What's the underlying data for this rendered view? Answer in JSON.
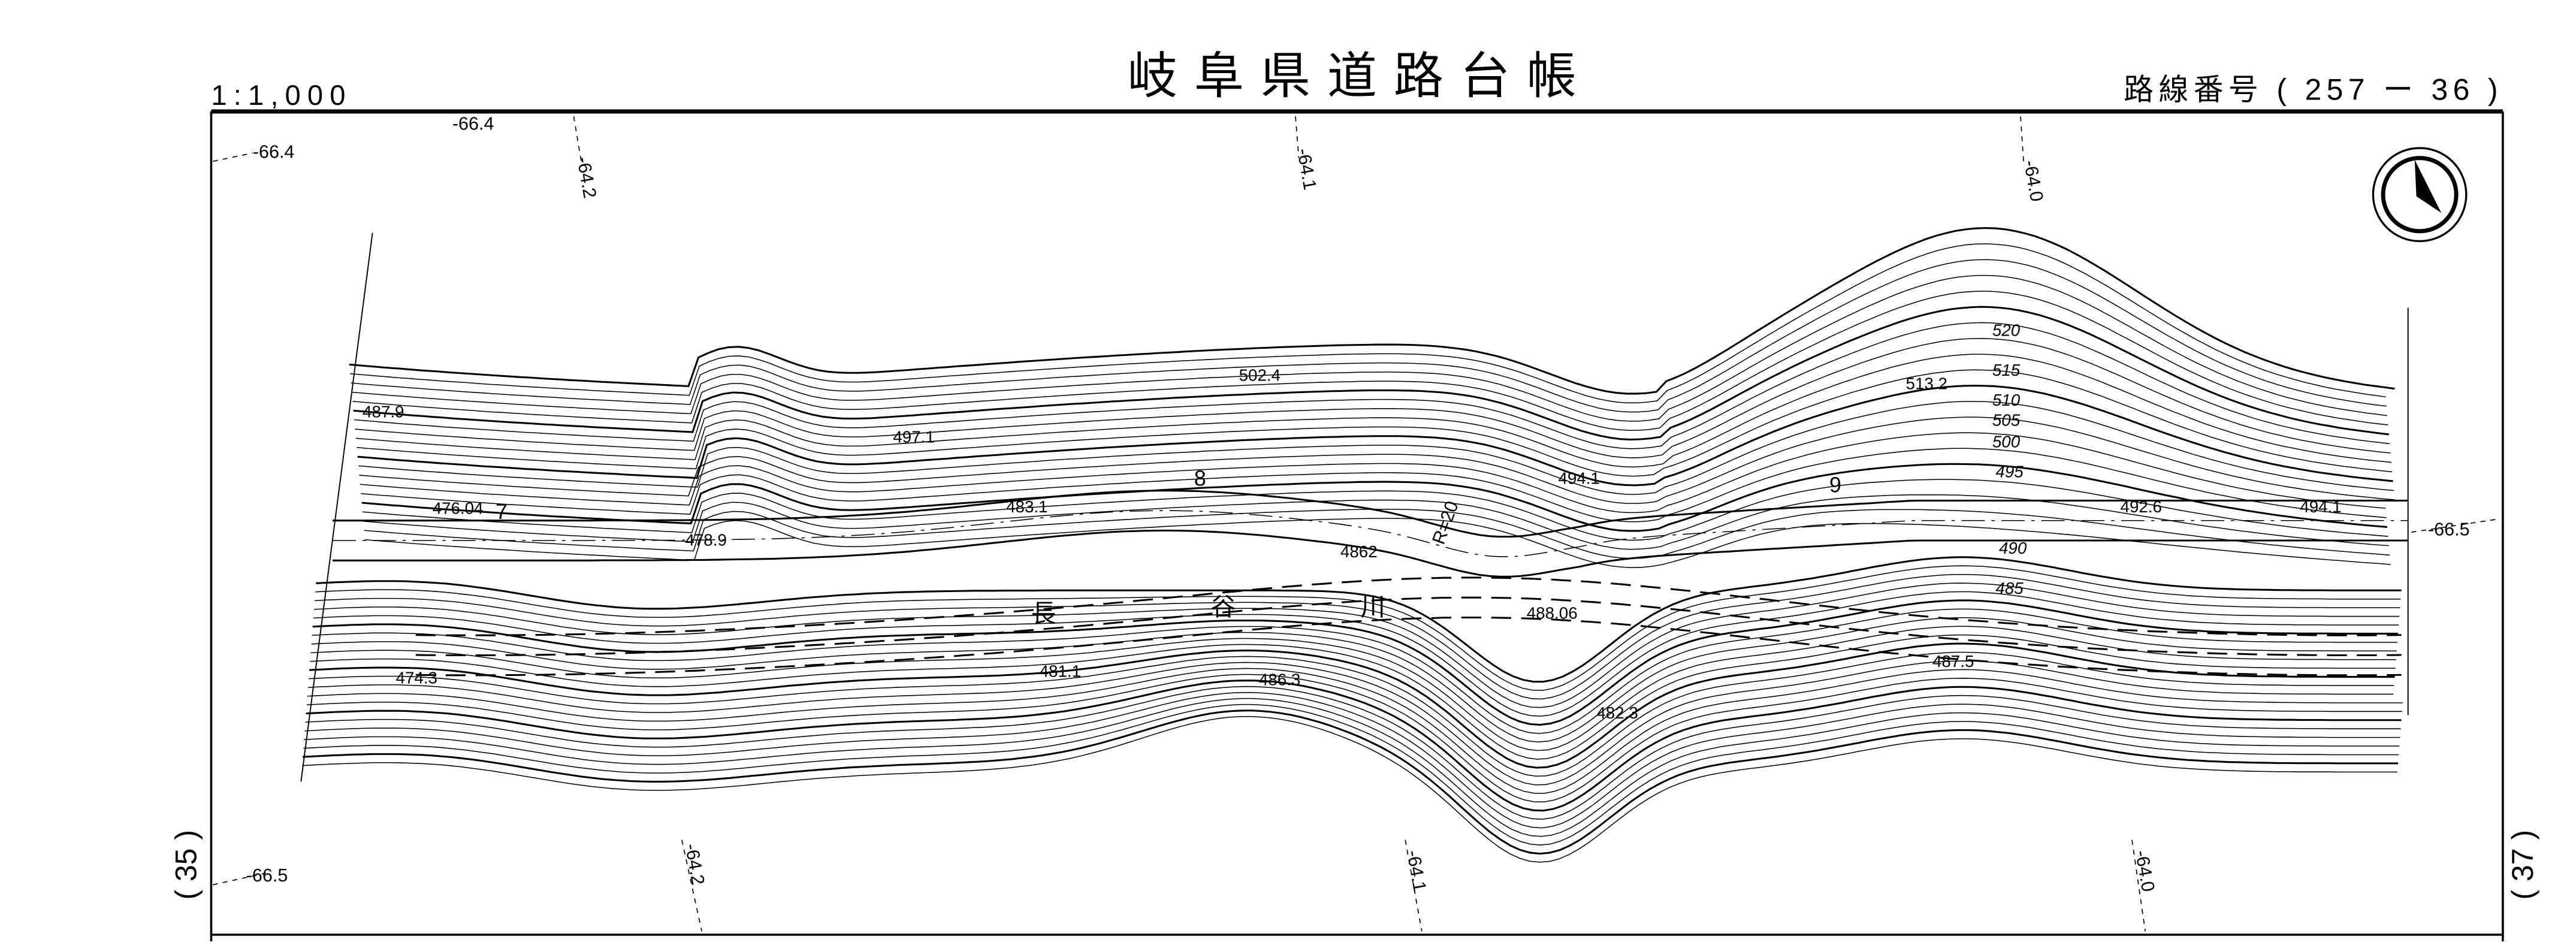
{
  "header": {
    "scale": "1:1,000",
    "title": "岐阜県道路台帳",
    "route_number": "路線番号 ( 257 ー 36 )"
  },
  "side_labels": {
    "left": "( 35 )",
    "right": "( 37 )"
  },
  "grid_labels": {
    "top_left_1": "-66.4",
    "top_left_2": "-66.4",
    "top_1": "-64.2",
    "top_2": "-64.1",
    "top_3": "-64.0",
    "right": "-66.5",
    "bottom_left": "-66.5",
    "bottom_1": "-64.2",
    "bottom_2": "-64.1",
    "bottom_3": "-64.0"
  },
  "stations": [
    "7",
    "8",
    "9"
  ],
  "curve_label": "R=20",
  "river_name": [
    "長",
    "谷",
    "川"
  ],
  "elevations": {
    "e1": "487.9",
    "e2": "502.4",
    "e3": "497.1",
    "e4": "476.04",
    "e5": "483.1",
    "e6": "478.9",
    "e7": "494.1",
    "e8": "4862",
    "e9": "488.06",
    "e10": "492.6",
    "e11": "494.1",
    "e12": "513.2",
    "e13": "474.3",
    "e14": "481.1",
    "e15": "486.3",
    "e16": "482.3",
    "e17": "487.5"
  },
  "contour_labels": [
    "520",
    "515",
    "510",
    "505",
    "500",
    "495",
    "490",
    "485"
  ],
  "north_arrow_icon": "north-arrow-icon"
}
